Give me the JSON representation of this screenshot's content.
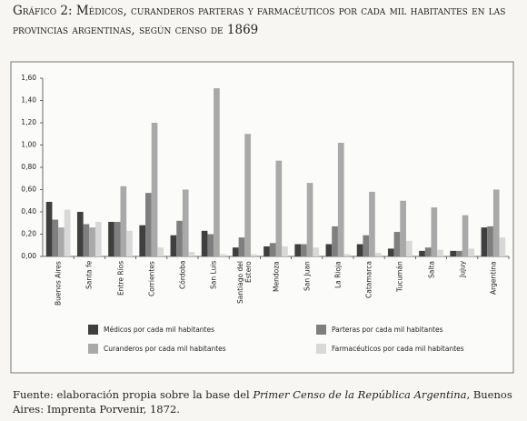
{
  "chart_data": {
    "type": "bar",
    "title": "Gráfico 2: Médicos, curanderos parteras y farmacéuticos por cada mil habitantes en las provincias argentinas, según censo de 1869",
    "source": {
      "before": "Fuente: elaboración propia sobre la base del",
      "italic": "Primer Censo de la República Argentina",
      "after": ", Buenos Aires: Imprenta Porvenir, 1872."
    },
    "categories": [
      "Buenos Aires",
      "Santa fe",
      "Entre Ríos",
      "Corrientes",
      "Córdoba",
      "San Luis",
      "Santiago del Estero",
      "Mendoza",
      "San Juan",
      "La Rioja",
      "Catamarca",
      "Tucumán",
      "Salta",
      "Jujuy",
      "Argentina"
    ],
    "series": [
      {
        "name": "Médicos por cada mil habitantes",
        "color": "#3f3f3f",
        "values": [
          0.49,
          0.4,
          0.31,
          0.28,
          0.19,
          0.23,
          0.08,
          0.09,
          0.11,
          0.11,
          0.11,
          0.07,
          0.05,
          0.05,
          0.26
        ]
      },
      {
        "name": "Parteras por cada mil habitantes",
        "color": "#7f7f7f",
        "values": [
          0.33,
          0.29,
          0.31,
          0.57,
          0.32,
          0.2,
          0.17,
          0.12,
          0.11,
          0.27,
          0.19,
          0.22,
          0.08,
          0.05,
          0.27
        ]
      },
      {
        "name": "Curanderos por cada mil habitantes",
        "color": "#a9a9a9",
        "values": [
          0.26,
          0.26,
          0.63,
          1.2,
          0.6,
          1.51,
          1.1,
          0.86,
          0.66,
          1.02,
          0.58,
          0.5,
          0.44,
          0.37,
          0.6
        ]
      },
      {
        "name": "Farmacéuticos por cada mil habitantes",
        "color": "#d8d8d8",
        "values": [
          0.42,
          0.31,
          0.23,
          0.08,
          0.04,
          0.02,
          0.02,
          0.09,
          0.08,
          0.02,
          0.03,
          0.14,
          0.06,
          0.07,
          0.17
        ]
      }
    ],
    "ylim": [
      0,
      1.6
    ],
    "yticks": [
      {
        "value": 0,
        "label": "0,00"
      },
      {
        "value": 0.2,
        "label": "0,20"
      },
      {
        "value": 0.4,
        "label": "0,40"
      },
      {
        "value": 0.6,
        "label": "0,60"
      },
      {
        "value": 0.8,
        "label": "0,80"
      },
      {
        "value": 1.0,
        "label": "1,00"
      },
      {
        "value": 1.2,
        "label": "1,20"
      },
      {
        "value": 1.4,
        "label": "1,40"
      },
      {
        "value": 1.6,
        "label": "1,60"
      }
    ],
    "grid": false
  }
}
